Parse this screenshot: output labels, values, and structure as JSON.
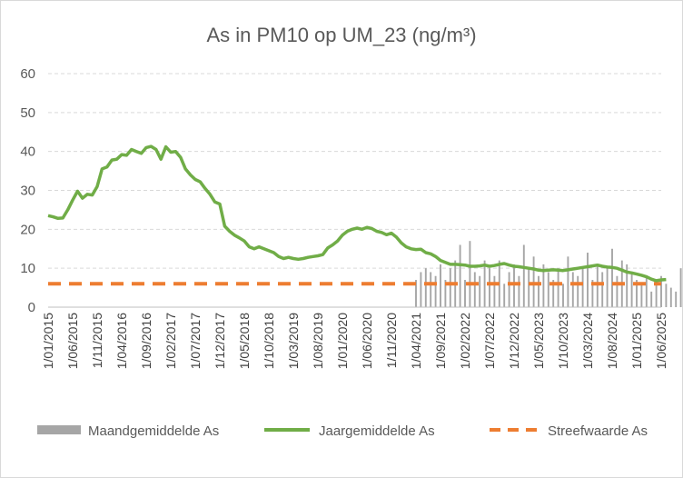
{
  "chart_data": {
    "type": "line",
    "title": "As in PM10 op UM_23 (ng/m³)",
    "xlabel": "",
    "ylabel": "",
    "ylim": [
      0,
      60
    ],
    "yticks": [
      0,
      10,
      20,
      30,
      40,
      50,
      60
    ],
    "grid": true,
    "legend_position": "bottom",
    "x_tick_labels": [
      "1/01/2015",
      "1/06/2015",
      "1/11/2015",
      "1/04/2016",
      "1/09/2016",
      "1/02/2017",
      "1/07/2017",
      "1/12/2017",
      "1/05/2018",
      "1/10/2018",
      "1/03/2019",
      "1/08/2019",
      "1/01/2020",
      "1/06/2020",
      "1/11/2020",
      "1/04/2021",
      "1/09/2021",
      "1/02/2022",
      "1/07/2022",
      "1/12/2022",
      "1/05/2023",
      "1/10/2023",
      "1/03/2024",
      "1/08/2024",
      "1/01/2025",
      "1/06/2025"
    ],
    "series": [
      {
        "name": "Maandgemiddelde As",
        "kind": "bar",
        "color": "#a6a6a6",
        "start": "1/04/2021",
        "values": [
          7,
          9,
          10,
          9,
          8,
          11,
          7,
          10,
          12,
          16,
          7,
          17,
          9,
          8,
          12,
          10,
          8,
          12,
          6,
          9,
          11,
          8,
          16,
          10,
          13,
          8,
          11,
          9,
          7,
          10,
          6,
          13,
          9,
          8,
          10,
          14,
          7,
          11,
          9,
          10,
          15,
          8,
          12,
          11,
          9,
          7,
          6,
          8,
          4,
          7,
          8,
          6,
          5,
          4,
          10,
          9
        ]
      },
      {
        "name": "Jaargemiddelde As",
        "kind": "line",
        "color": "#70ad47",
        "start": "1/01/2015",
        "values": [
          23.5,
          23.2,
          22.8,
          22.9,
          25,
          27.5,
          29.8,
          28,
          29,
          28.8,
          31,
          35.5,
          36,
          37.8,
          38,
          39.2,
          39,
          40.5,
          40,
          39.5,
          41,
          41.3,
          40.5,
          38,
          41.2,
          39.8,
          40,
          38.5,
          35.5,
          34,
          32.8,
          32.2,
          30.5,
          29,
          27,
          26.5,
          20.8,
          19.5,
          18.5,
          17.8,
          17,
          15.5,
          15,
          15.5,
          15,
          14.5,
          14,
          13,
          12.5,
          12.8,
          12.5,
          12.3,
          12.5,
          12.8,
          13,
          13.2,
          13.5,
          15.2,
          16,
          17,
          18.5,
          19.5,
          20,
          20.3,
          20,
          20.5,
          20.2,
          19.5,
          19.2,
          18.6,
          19,
          18,
          16.5,
          15.5,
          15,
          14.8,
          14.9,
          14,
          13.7,
          13,
          12,
          11.5,
          11,
          11,
          10.9,
          10.8,
          10.5,
          10.5,
          10.6,
          10.8,
          10.5,
          10.7,
          11,
          11.2,
          10.8,
          10.5,
          10.4,
          10.2,
          10,
          9.8,
          9.5,
          9.4,
          9.5,
          9.6,
          9.5,
          9.4,
          9.6,
          9.8,
          10,
          10.2,
          10.4,
          10.6,
          10.8,
          10.5,
          10.3,
          10.2,
          10,
          9.5,
          9,
          8.8,
          8.5,
          8.2,
          7.8,
          7.2,
          6.8,
          7,
          7.1
        ]
      },
      {
        "name": "Streefwaarde As",
        "kind": "dashed-line",
        "color": "#ed7d31",
        "value": 6
      }
    ]
  }
}
